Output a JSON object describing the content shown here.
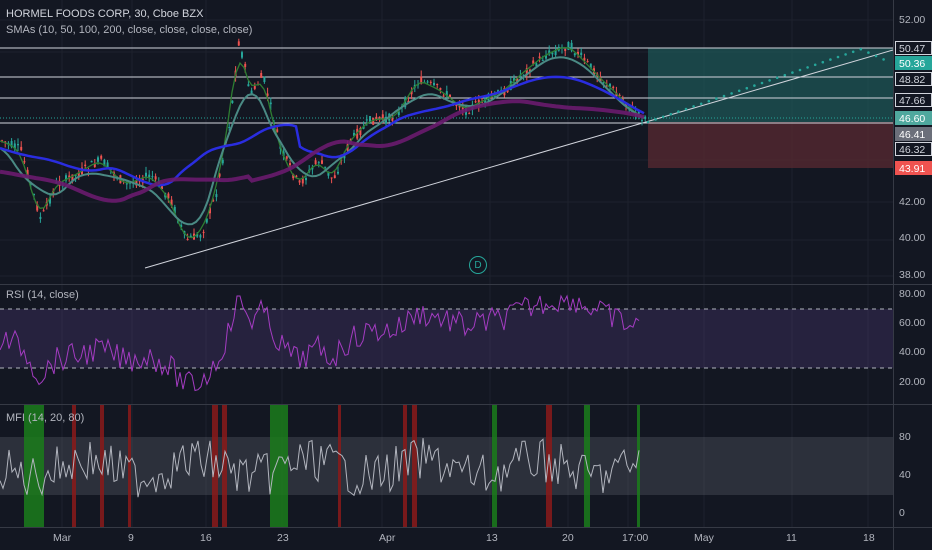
{
  "header": {
    "symbol_line": "HORMEL FOODS CORP, 30, Cboe BZX",
    "sma_line": "SMAs (10, 50, 100, 200, close, close, close, close)"
  },
  "event_badge": "D",
  "price_axis": {
    "ticks": [
      "52.00",
      "42.00",
      "40.00",
      "38.00"
    ],
    "tags": [
      {
        "label": "50.47",
        "bg": "#131722",
        "fg": "#d1d4dc",
        "border": "#d1d4dc"
      },
      {
        "label": "50.36",
        "bg": "#26a69a",
        "fg": "#ffffff",
        "border": "#26a69a"
      },
      {
        "label": "48.82",
        "bg": "#131722",
        "fg": "#d1d4dc",
        "border": "#d1d4dc"
      },
      {
        "label": "47.66",
        "bg": "#131722",
        "fg": "#d1d4dc",
        "border": "#d1d4dc"
      },
      {
        "label": "46.60",
        "bg": "#4fa89e",
        "fg": "#ffffff",
        "border": "#4fa89e"
      },
      {
        "label": "46.41",
        "bg": "#6b6f7a",
        "fg": "#ffffff",
        "border": "#6b6f7a"
      },
      {
        "label": "46.32",
        "bg": "#131722",
        "fg": "#d1d4dc",
        "border": "#d1d4dc"
      },
      {
        "label": "43.91",
        "bg": "#ef5350",
        "fg": "#ffffff",
        "border": "#ef5350"
      }
    ]
  },
  "rsi": {
    "label": "RSI (14, close)",
    "ticks": [
      "80.00",
      "60.00",
      "40.00",
      "20.00"
    ]
  },
  "mfi": {
    "label": "MFI (14, 20, 80)",
    "ticks": [
      "80",
      "40",
      "0"
    ]
  },
  "time_axis": [
    "Mar",
    "9",
    "16",
    "23",
    "Apr",
    "13",
    "20",
    "17:00",
    "May",
    "11",
    "18"
  ],
  "colors": {
    "background": "#131722",
    "up": "#26a69a",
    "down": "#ef5350",
    "sma10": "#2e7d32",
    "sma50": "#4a8a84",
    "sma100": "#2a2de0",
    "sma200": "#6a1b6e",
    "rsi_line": "#a43cc2",
    "mfi_line": "#b2b5be"
  }
}
